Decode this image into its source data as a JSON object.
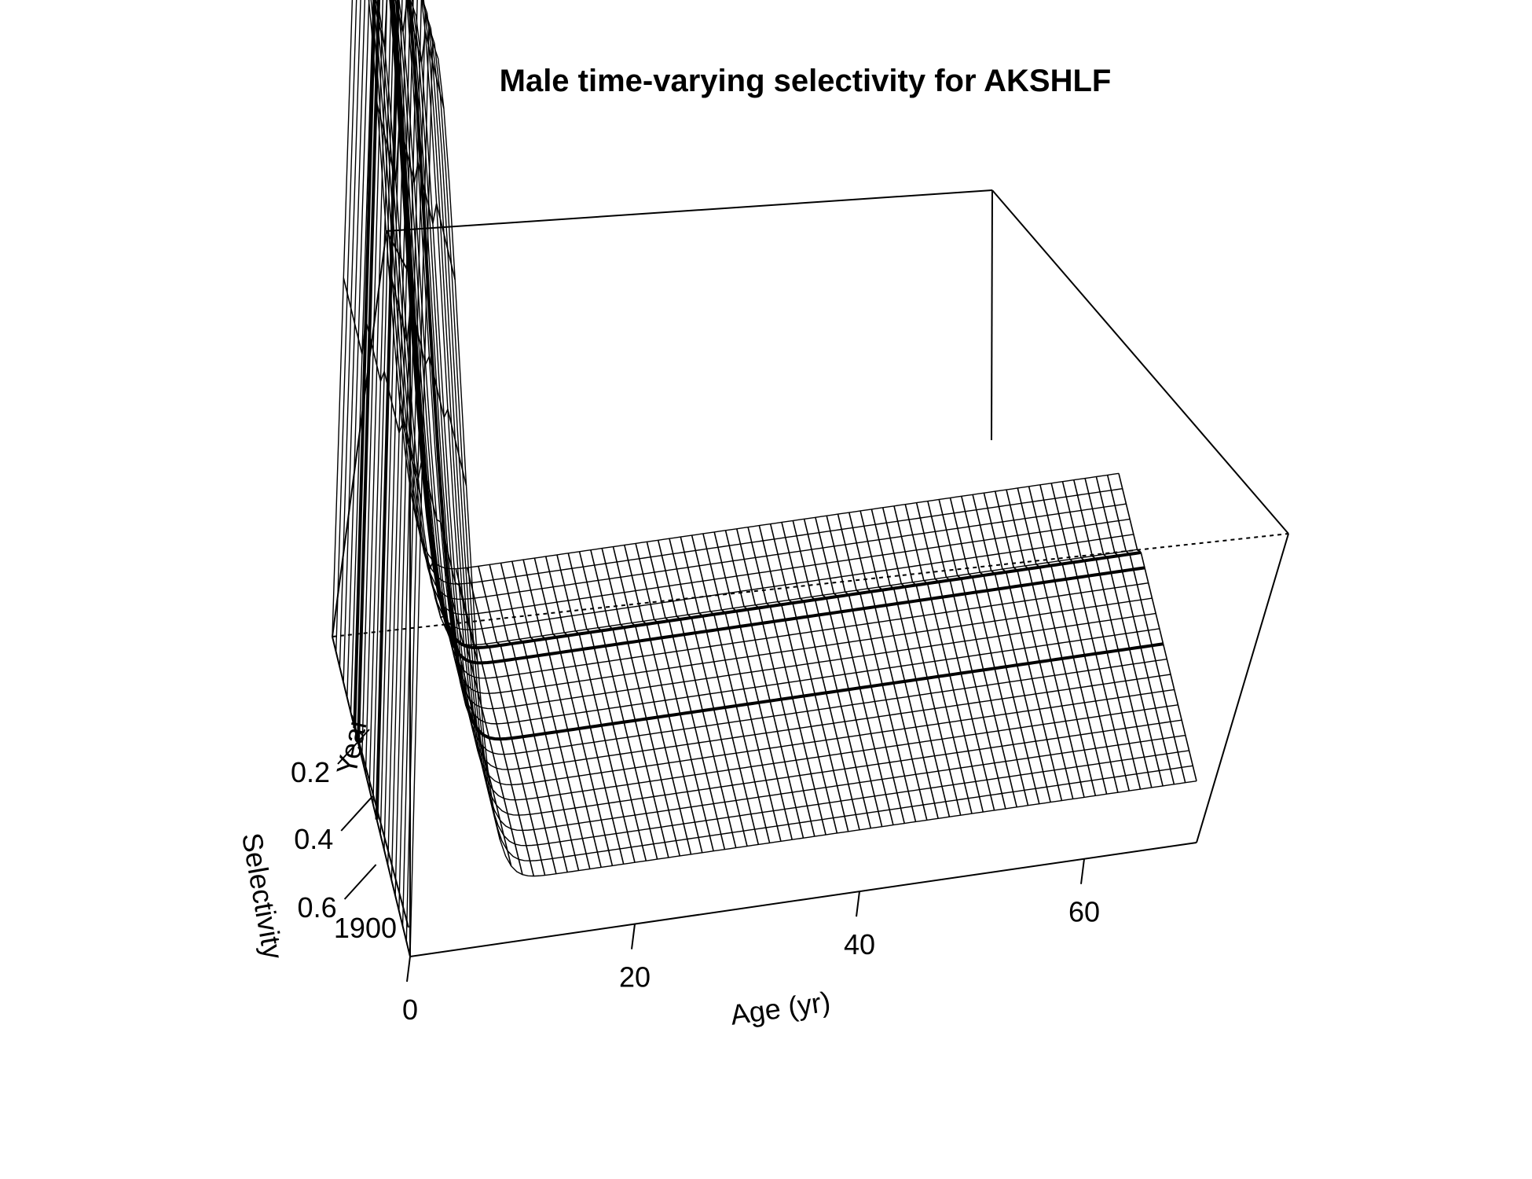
{
  "chart_data": {
    "type": "surface",
    "title": "Male time-varying selectivity for AKSHLF",
    "xlabel": "Age (yr)",
    "ylabel": "Year",
    "zlabel": "Selectivity",
    "x_ticks": [
      "0",
      "20",
      "40",
      "60"
    ],
    "y_ticks": [
      "1900"
    ],
    "z_ticks": [
      "0.2",
      "0.4",
      "0.6"
    ],
    "xlim": [
      0,
      70
    ],
    "zlim": [
      0,
      0.75
    ],
    "x": [
      0,
      1,
      2,
      3,
      4,
      5,
      6,
      7,
      8,
      9,
      10,
      11,
      12,
      13,
      14,
      15,
      16,
      17,
      18,
      19,
      20,
      21,
      22,
      23,
      24,
      25,
      26,
      27,
      28,
      29,
      30,
      31,
      32,
      33,
      34,
      35,
      36,
      37,
      38,
      39,
      40,
      41,
      42,
      43,
      44,
      45,
      46,
      47,
      48,
      49,
      50,
      51,
      52,
      53,
      54,
      55,
      56,
      57,
      58,
      59,
      60,
      61,
      62,
      63,
      64,
      65,
      66,
      67,
      68,
      69,
      70
    ],
    "year_profiles": [
      {
        "peak_age": 2,
        "peak": 0.74,
        "plateau": 0.05
      },
      {
        "peak_age": 2,
        "peak": 0.7,
        "plateau": 0.05
      },
      {
        "peak_age": 2,
        "peak": 0.66,
        "plateau": 0.05
      },
      {
        "peak_age": 2,
        "peak": 0.58,
        "plateau": 0.04
      }
    ],
    "grid": false
  }
}
